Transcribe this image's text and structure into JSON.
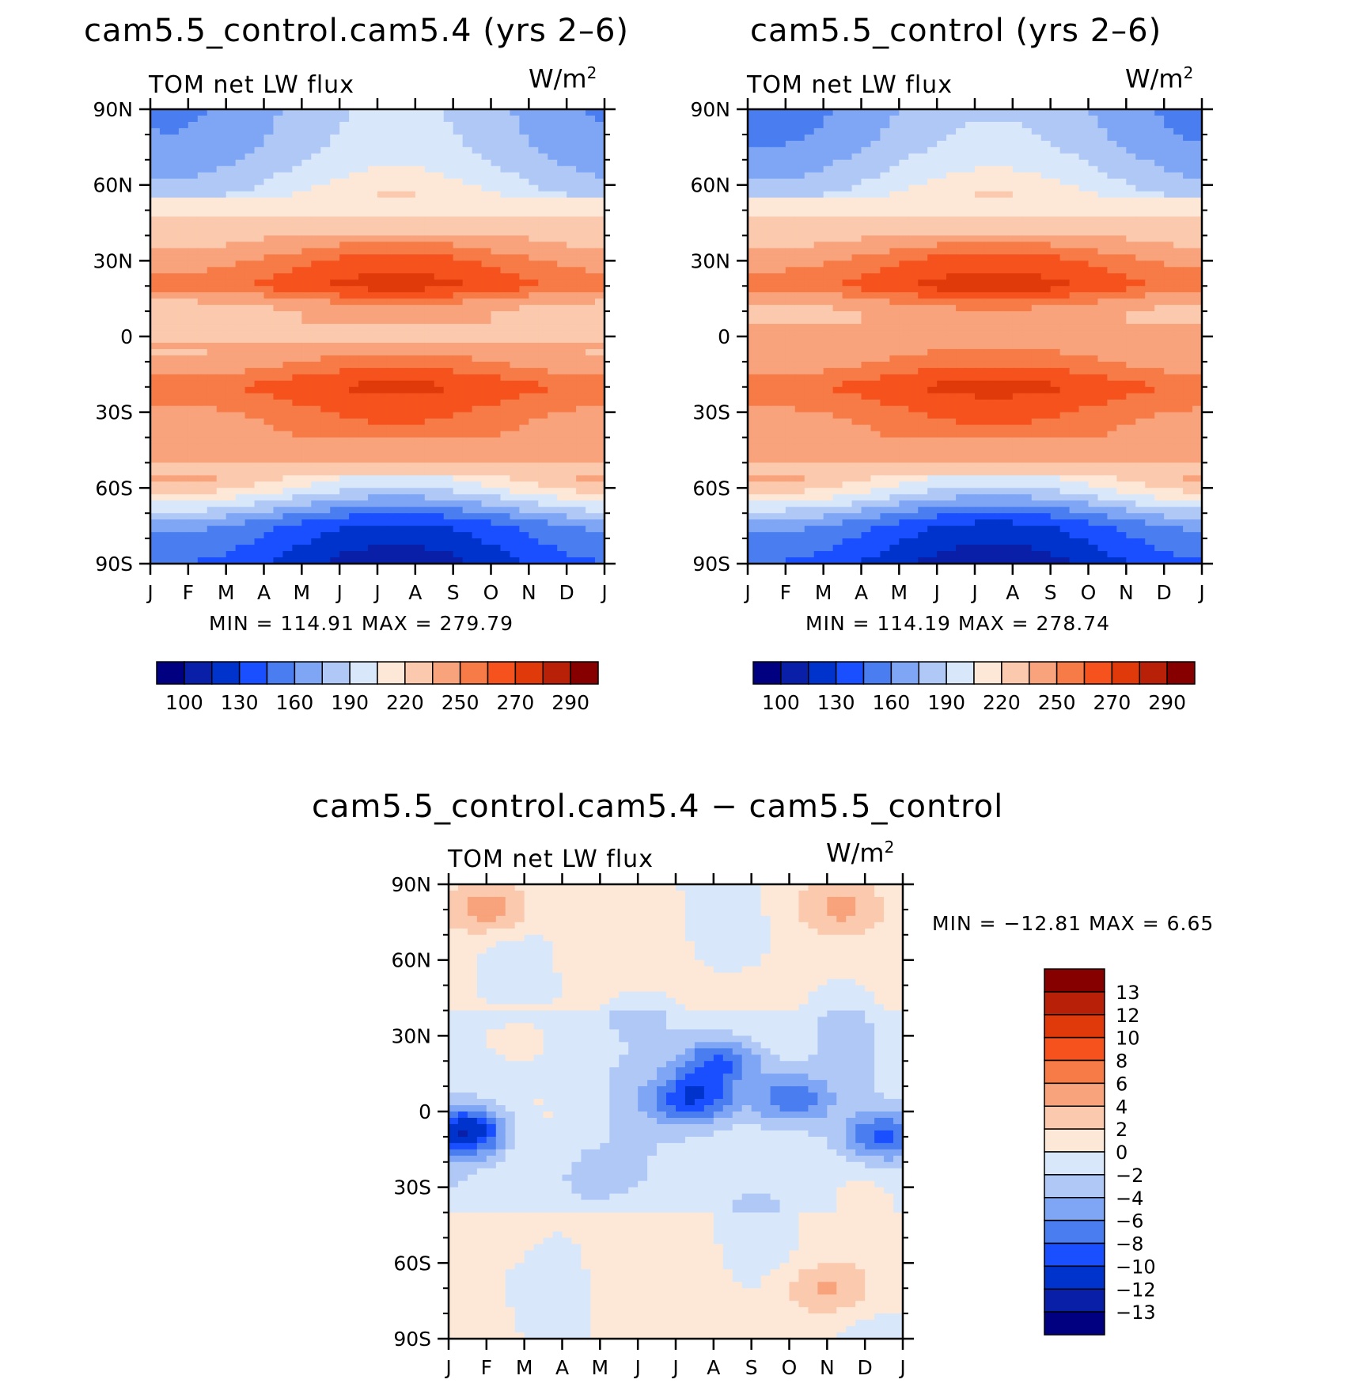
{
  "units_base": "W/m",
  "units_exp": "2",
  "months": [
    "J",
    "F",
    "M",
    "A",
    "M",
    "J",
    "J",
    "A",
    "S",
    "O",
    "N",
    "D",
    "J"
  ],
  "lat_labels": [
    "90N",
    "60N",
    "30N",
    "0",
    "30S",
    "60S",
    "90S"
  ],
  "colors": {
    "abs": [
      "#000080",
      "#0a1fa8",
      "#0033cc",
      "#1a4fff",
      "#4a7ef0",
      "#7fa6f5",
      "#b0c8f5",
      "#d8e8fa",
      "#fde8d8",
      "#fbc9ad",
      "#f8a37c",
      "#f77b46",
      "#f5521d",
      "#e03a0a",
      "#b82008",
      "#870000"
    ],
    "diff": [
      "#000080",
      "#0a1fa8",
      "#0033cc",
      "#1a4fff",
      "#4a7ef0",
      "#7fa6f5",
      "#b0c8f5",
      "#d8e8fa",
      "#fde8d8",
      "#fbc9ad",
      "#f8a37c",
      "#f77b46",
      "#f5521d",
      "#e03a0a",
      "#b82008",
      "#870000"
    ]
  },
  "chart_data": [
    {
      "type": "heatmap",
      "title": "cam5.5_control.cam5.4 (yrs 2–6)",
      "field": "TOM net LW flux",
      "minmax": "MIN = 114.91 MAX = 279.79",
      "x": "month",
      "y": "latitude",
      "ylim": [
        -90,
        90
      ],
      "colorbar_labels": [
        "100",
        "130",
        "160",
        "190",
        "220",
        "250",
        "270",
        "290"
      ],
      "profile": [
        [
          -90,
          125
        ],
        [
          -75,
          145
        ],
        [
          -60,
          210
        ],
        [
          -45,
          245
        ],
        [
          -30,
          255
        ],
        [
          -20,
          265
        ],
        [
          -10,
          248
        ],
        [
          0,
          232
        ],
        [
          10,
          232
        ],
        [
          20,
          265
        ],
        [
          30,
          255
        ],
        [
          45,
          225
        ],
        [
          60,
          195
        ],
        [
          75,
          180
        ],
        [
          90,
          175
        ]
      ]
    },
    {
      "type": "heatmap",
      "title": "cam5.5_control (yrs 2–6)",
      "field": "TOM net LW flux",
      "minmax": "MIN = 114.19 MAX = 278.74",
      "x": "month",
      "y": "latitude",
      "ylim": [
        -90,
        90
      ],
      "colorbar_labels": [
        "100",
        "130",
        "160",
        "190",
        "220",
        "250",
        "270",
        "290"
      ],
      "profile": [
        [
          -90,
          124
        ],
        [
          -75,
          144
        ],
        [
          -60,
          208
        ],
        [
          -45,
          245
        ],
        [
          -30,
          256
        ],
        [
          -20,
          266
        ],
        [
          -10,
          250
        ],
        [
          0,
          238
        ],
        [
          10,
          238
        ],
        [
          20,
          266
        ],
        [
          30,
          256
        ],
        [
          45,
          225
        ],
        [
          60,
          195
        ],
        [
          75,
          178
        ],
        [
          90,
          170
        ]
      ]
    },
    {
      "type": "heatmap",
      "title": "cam5.5_control.cam5.4 − cam5.5_control",
      "field": "TOM net LW flux",
      "minmax": "MIN = −12.81 MAX =    6.65",
      "x": "month",
      "y": "latitude",
      "ylim": [
        -90,
        90
      ],
      "colorbar_labels": [
        "13",
        "12",
        "10",
        "8",
        "6",
        "4",
        "2",
        "0",
        "−2",
        "−4",
        "−6",
        "−8",
        "−10",
        "−12",
        "−13"
      ],
      "blobs": [
        {
          "lat": 80,
          "month": 1,
          "value": 5
        },
        {
          "lat": 80,
          "month": 10.5,
          "value": 3
        },
        {
          "lat": 20,
          "month": 7.2,
          "value": -8
        },
        {
          "lat": 5,
          "month": 6.5,
          "value": -9
        },
        {
          "lat": 5,
          "month": 9.0,
          "value": -7
        },
        {
          "lat": -8,
          "month": 0.5,
          "value": -11
        },
        {
          "lat": -10,
          "month": 11.5,
          "value": -8
        },
        {
          "lat": -70,
          "month": 10.0,
          "value": 4
        },
        {
          "lat": 30,
          "month": 1.8,
          "value": 2
        },
        {
          "lat": -50,
          "month": 1.0,
          "value": 1.5
        },
        {
          "lat": 40,
          "month": 5.0,
          "value": -2
        },
        {
          "lat": -25,
          "month": 4.0,
          "value": -3
        }
      ]
    }
  ]
}
